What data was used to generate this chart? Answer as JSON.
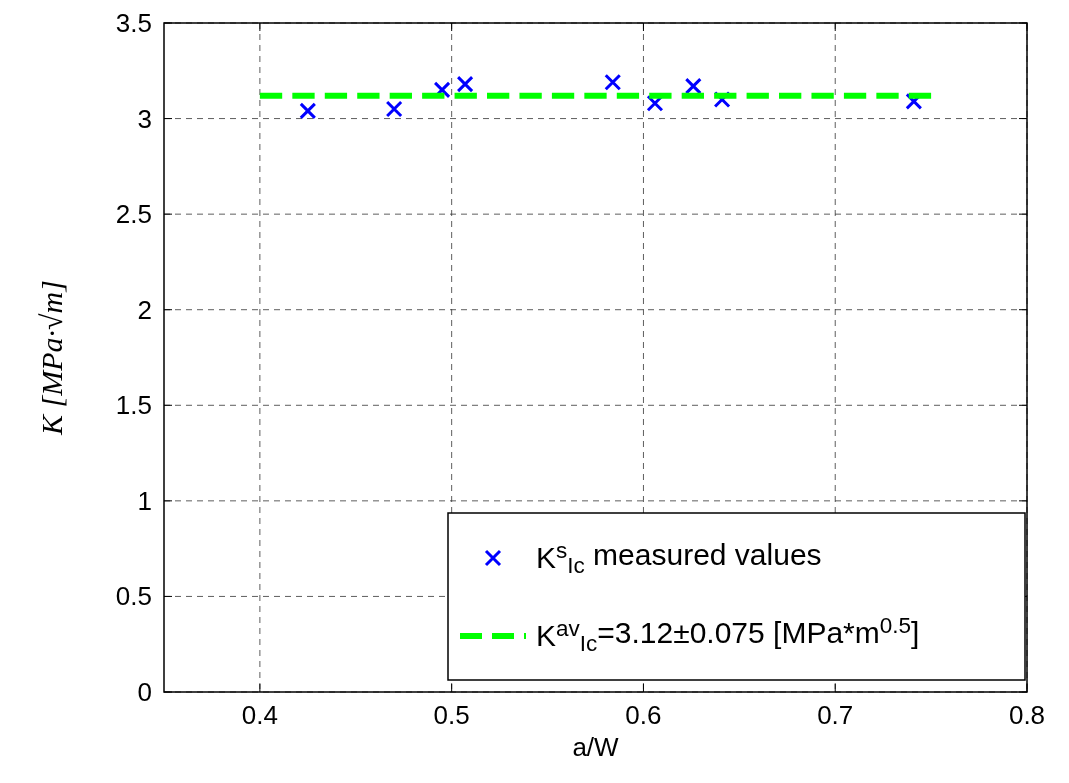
{
  "chart_data": {
    "type": "scatter",
    "xlabel": "a/W",
    "ylabel": "K [MPa·√m]",
    "xlim": [
      0.35,
      0.8
    ],
    "xticks": [
      0.4,
      0.5,
      0.6,
      0.7,
      0.8
    ],
    "ylim": [
      0,
      3.5
    ],
    "yticks": [
      0,
      0.5,
      1,
      1.5,
      2,
      2.5,
      3,
      3.5
    ],
    "grid": true,
    "legend": "bottom right",
    "series": [
      {
        "name": "K$^{s}$$_{Ic}$ measured values",
        "color": "#0000ff",
        "marker": "cross",
        "x": [
          0.425,
          0.47,
          0.495,
          0.507,
          0.584,
          0.606,
          0.626,
          0.641,
          0.741
        ],
        "values": [
          3.04,
          3.05,
          3.15,
          3.18,
          3.19,
          3.08,
          3.17,
          3.1,
          3.09
        ]
      },
      {
        "name": "K$^{av}$$_{Ic}$=3.12±0.075 [MPa*m$^{0.5}$]",
        "type": "line",
        "color": "#00ff00",
        "line_style": "dashed",
        "marker": "none",
        "x": [
          0.4,
          0.75
        ],
        "values": [
          3.12,
          3.12
        ]
      }
    ]
  }
}
